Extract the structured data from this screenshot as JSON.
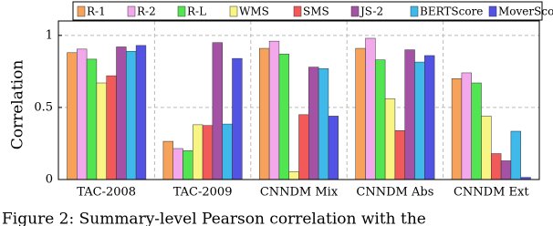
{
  "chart_data": {
    "type": "bar",
    "y_label": "Correlation",
    "caption": "Figure 2: Summary-level Pearson correlation with the",
    "categories": [
      "TAC-2008",
      "TAC-2009",
      "CNNDM Mix",
      "CNNDM Abs",
      "CNNDM Ext"
    ],
    "series": [
      {
        "name": "R-1",
        "color": "#f6a25a",
        "values": [
          0.88,
          0.265,
          0.91,
          0.91,
          0.7
        ]
      },
      {
        "name": "R-2",
        "color": "#f3a8ec",
        "values": [
          0.905,
          0.215,
          0.96,
          0.98,
          0.74
        ]
      },
      {
        "name": "R-L",
        "color": "#52e552",
        "values": [
          0.835,
          0.2,
          0.87,
          0.83,
          0.67
        ]
      },
      {
        "name": "WMS",
        "color": "#f9f585",
        "values": [
          0.67,
          0.38,
          0.055,
          0.56,
          0.44
        ]
      },
      {
        "name": "SMS",
        "color": "#f25a5a",
        "values": [
          0.72,
          0.375,
          0.45,
          0.34,
          0.18
        ]
      },
      {
        "name": "JS-2",
        "color": "#a452a4",
        "values": [
          0.92,
          0.95,
          0.78,
          0.9,
          0.13
        ]
      },
      {
        "name": "BERTScore",
        "color": "#3fb9e9",
        "values": [
          0.89,
          0.385,
          0.77,
          0.815,
          0.335
        ]
      },
      {
        "name": "MoverScore",
        "color": "#5252e3",
        "values": [
          0.93,
          0.84,
          0.44,
          0.86,
          0.015
        ]
      }
    ],
    "ylim": [
      0,
      1.1
    ],
    "yticks": [
      0,
      0.5,
      1
    ],
    "grid": true,
    "legend": "top"
  }
}
